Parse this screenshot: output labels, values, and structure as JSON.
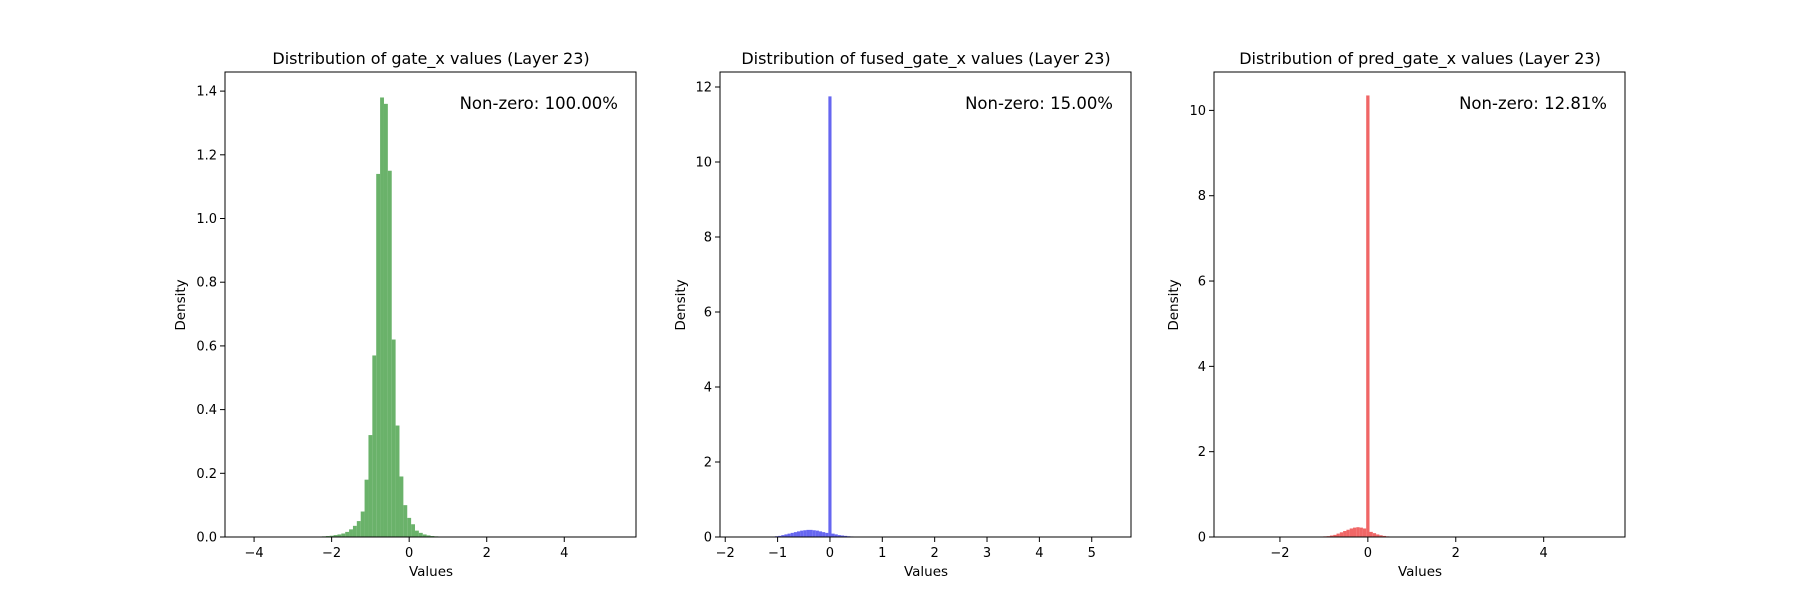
{
  "chart_data": [
    {
      "type": "bar",
      "title": "Distribution of gate_x values (Layer 23)",
      "xlabel": "Values",
      "ylabel": "Density",
      "xlim": [
        -4.75,
        5.85
      ],
      "ylim": [
        0,
        1.46
      ],
      "xticks": [
        -4,
        -2,
        0,
        2,
        4
      ],
      "yticks": [
        0.0,
        0.2,
        0.4,
        0.6,
        0.8,
        1.0,
        1.2,
        1.4
      ],
      "ytick_labels": [
        "0.0",
        "0.2",
        "0.4",
        "0.6",
        "0.8",
        "1.0",
        "1.2",
        "1.4"
      ],
      "annotation": "Non-zero: 100.00%",
      "color": "#5aaa5a",
      "bin_width": 0.1,
      "bins": [
        {
          "x": -2.2,
          "y": 0.002
        },
        {
          "x": -2.1,
          "y": 0.003
        },
        {
          "x": -2.0,
          "y": 0.004
        },
        {
          "x": -1.9,
          "y": 0.006
        },
        {
          "x": -1.8,
          "y": 0.008
        },
        {
          "x": -1.7,
          "y": 0.011
        },
        {
          "x": -1.6,
          "y": 0.016
        },
        {
          "x": -1.5,
          "y": 0.024
        },
        {
          "x": -1.4,
          "y": 0.035
        },
        {
          "x": -1.3,
          "y": 0.05
        },
        {
          "x": -1.2,
          "y": 0.08
        },
        {
          "x": -1.1,
          "y": 0.18
        },
        {
          "x": -1.0,
          "y": 0.32
        },
        {
          "x": -0.9,
          "y": 0.57
        },
        {
          "x": -0.8,
          "y": 1.14
        },
        {
          "x": -0.7,
          "y": 1.38
        },
        {
          "x": -0.6,
          "y": 1.36
        },
        {
          "x": -0.5,
          "y": 1.15
        },
        {
          "x": -0.4,
          "y": 0.62
        },
        {
          "x": -0.3,
          "y": 0.35
        },
        {
          "x": -0.2,
          "y": 0.19
        },
        {
          "x": -0.1,
          "y": 0.1
        },
        {
          "x": 0.0,
          "y": 0.06
        },
        {
          "x": 0.1,
          "y": 0.04
        },
        {
          "x": 0.2,
          "y": 0.02
        },
        {
          "x": 0.3,
          "y": 0.013
        },
        {
          "x": 0.4,
          "y": 0.008
        },
        {
          "x": 0.5,
          "y": 0.005
        },
        {
          "x": 0.6,
          "y": 0.003
        },
        {
          "x": 0.7,
          "y": 0.002
        },
        {
          "x": 0.8,
          "y": 0.001
        }
      ]
    },
    {
      "type": "bar",
      "title": "Distribution of fused_gate_x values (Layer 23)",
      "xlabel": "Values",
      "ylabel": "Density",
      "xlim": [
        -2.1,
        5.75
      ],
      "ylim": [
        0,
        12.4
      ],
      "xticks": [
        -2,
        -1,
        0,
        1,
        2,
        3,
        4,
        5
      ],
      "yticks": [
        0,
        2,
        4,
        6,
        8,
        10,
        12
      ],
      "ytick_labels": [
        "0",
        "2",
        "4",
        "6",
        "8",
        "10",
        "12"
      ],
      "annotation": "Non-zero: 15.00%",
      "color": "#5555ee",
      "bin_width": 0.06,
      "bins": [
        {
          "x": -1.08,
          "y": 0.01
        },
        {
          "x": -1.02,
          "y": 0.02
        },
        {
          "x": -0.96,
          "y": 0.03
        },
        {
          "x": -0.9,
          "y": 0.05
        },
        {
          "x": -0.84,
          "y": 0.07
        },
        {
          "x": -0.78,
          "y": 0.09
        },
        {
          "x": -0.72,
          "y": 0.11
        },
        {
          "x": -0.66,
          "y": 0.13
        },
        {
          "x": -0.6,
          "y": 0.15
        },
        {
          "x": -0.54,
          "y": 0.17
        },
        {
          "x": -0.48,
          "y": 0.18
        },
        {
          "x": -0.42,
          "y": 0.19
        },
        {
          "x": -0.36,
          "y": 0.19
        },
        {
          "x": -0.3,
          "y": 0.18
        },
        {
          "x": -0.24,
          "y": 0.17
        },
        {
          "x": -0.18,
          "y": 0.15
        },
        {
          "x": -0.12,
          "y": 0.13
        },
        {
          "x": -0.06,
          "y": 0.11
        },
        {
          "x": 0.0,
          "y": 11.75
        },
        {
          "x": 0.06,
          "y": 0.09
        },
        {
          "x": 0.12,
          "y": 0.07
        },
        {
          "x": 0.18,
          "y": 0.05
        },
        {
          "x": 0.24,
          "y": 0.04
        },
        {
          "x": 0.3,
          "y": 0.03
        },
        {
          "x": 0.36,
          "y": 0.02
        },
        {
          "x": 0.42,
          "y": 0.015
        },
        {
          "x": 0.48,
          "y": 0.01
        }
      ]
    },
    {
      "type": "bar",
      "title": "Distribution of pred_gate_x values (Layer 23)",
      "xlabel": "Values",
      "ylabel": "Density",
      "xlim": [
        -3.5,
        5.85
      ],
      "ylim": [
        0,
        10.9
      ],
      "xticks": [
        -2,
        0,
        2,
        4
      ],
      "yticks": [
        0,
        2,
        4,
        6,
        8,
        10
      ],
      "ytick_labels": [
        "0",
        "2",
        "4",
        "6",
        "8",
        "10"
      ],
      "annotation": "Non-zero: 12.81%",
      "color": "#ee5555",
      "bin_width": 0.075,
      "bins": [
        {
          "x": -1.05,
          "y": 0.01
        },
        {
          "x": -0.975,
          "y": 0.015
        },
        {
          "x": -0.9,
          "y": 0.02
        },
        {
          "x": -0.825,
          "y": 0.035
        },
        {
          "x": -0.75,
          "y": 0.05
        },
        {
          "x": -0.675,
          "y": 0.08
        },
        {
          "x": -0.6,
          "y": 0.11
        },
        {
          "x": -0.525,
          "y": 0.14
        },
        {
          "x": -0.45,
          "y": 0.17
        },
        {
          "x": -0.375,
          "y": 0.2
        },
        {
          "x": -0.3,
          "y": 0.22
        },
        {
          "x": -0.225,
          "y": 0.23
        },
        {
          "x": -0.15,
          "y": 0.22
        },
        {
          "x": -0.075,
          "y": 0.2
        },
        {
          "x": 0.0,
          "y": 10.35
        },
        {
          "x": 0.075,
          "y": 0.12
        },
        {
          "x": 0.15,
          "y": 0.09
        },
        {
          "x": 0.225,
          "y": 0.06
        },
        {
          "x": 0.3,
          "y": 0.04
        },
        {
          "x": 0.375,
          "y": 0.025
        },
        {
          "x": 0.45,
          "y": 0.015
        },
        {
          "x": 0.525,
          "y": 0.01
        }
      ]
    }
  ]
}
